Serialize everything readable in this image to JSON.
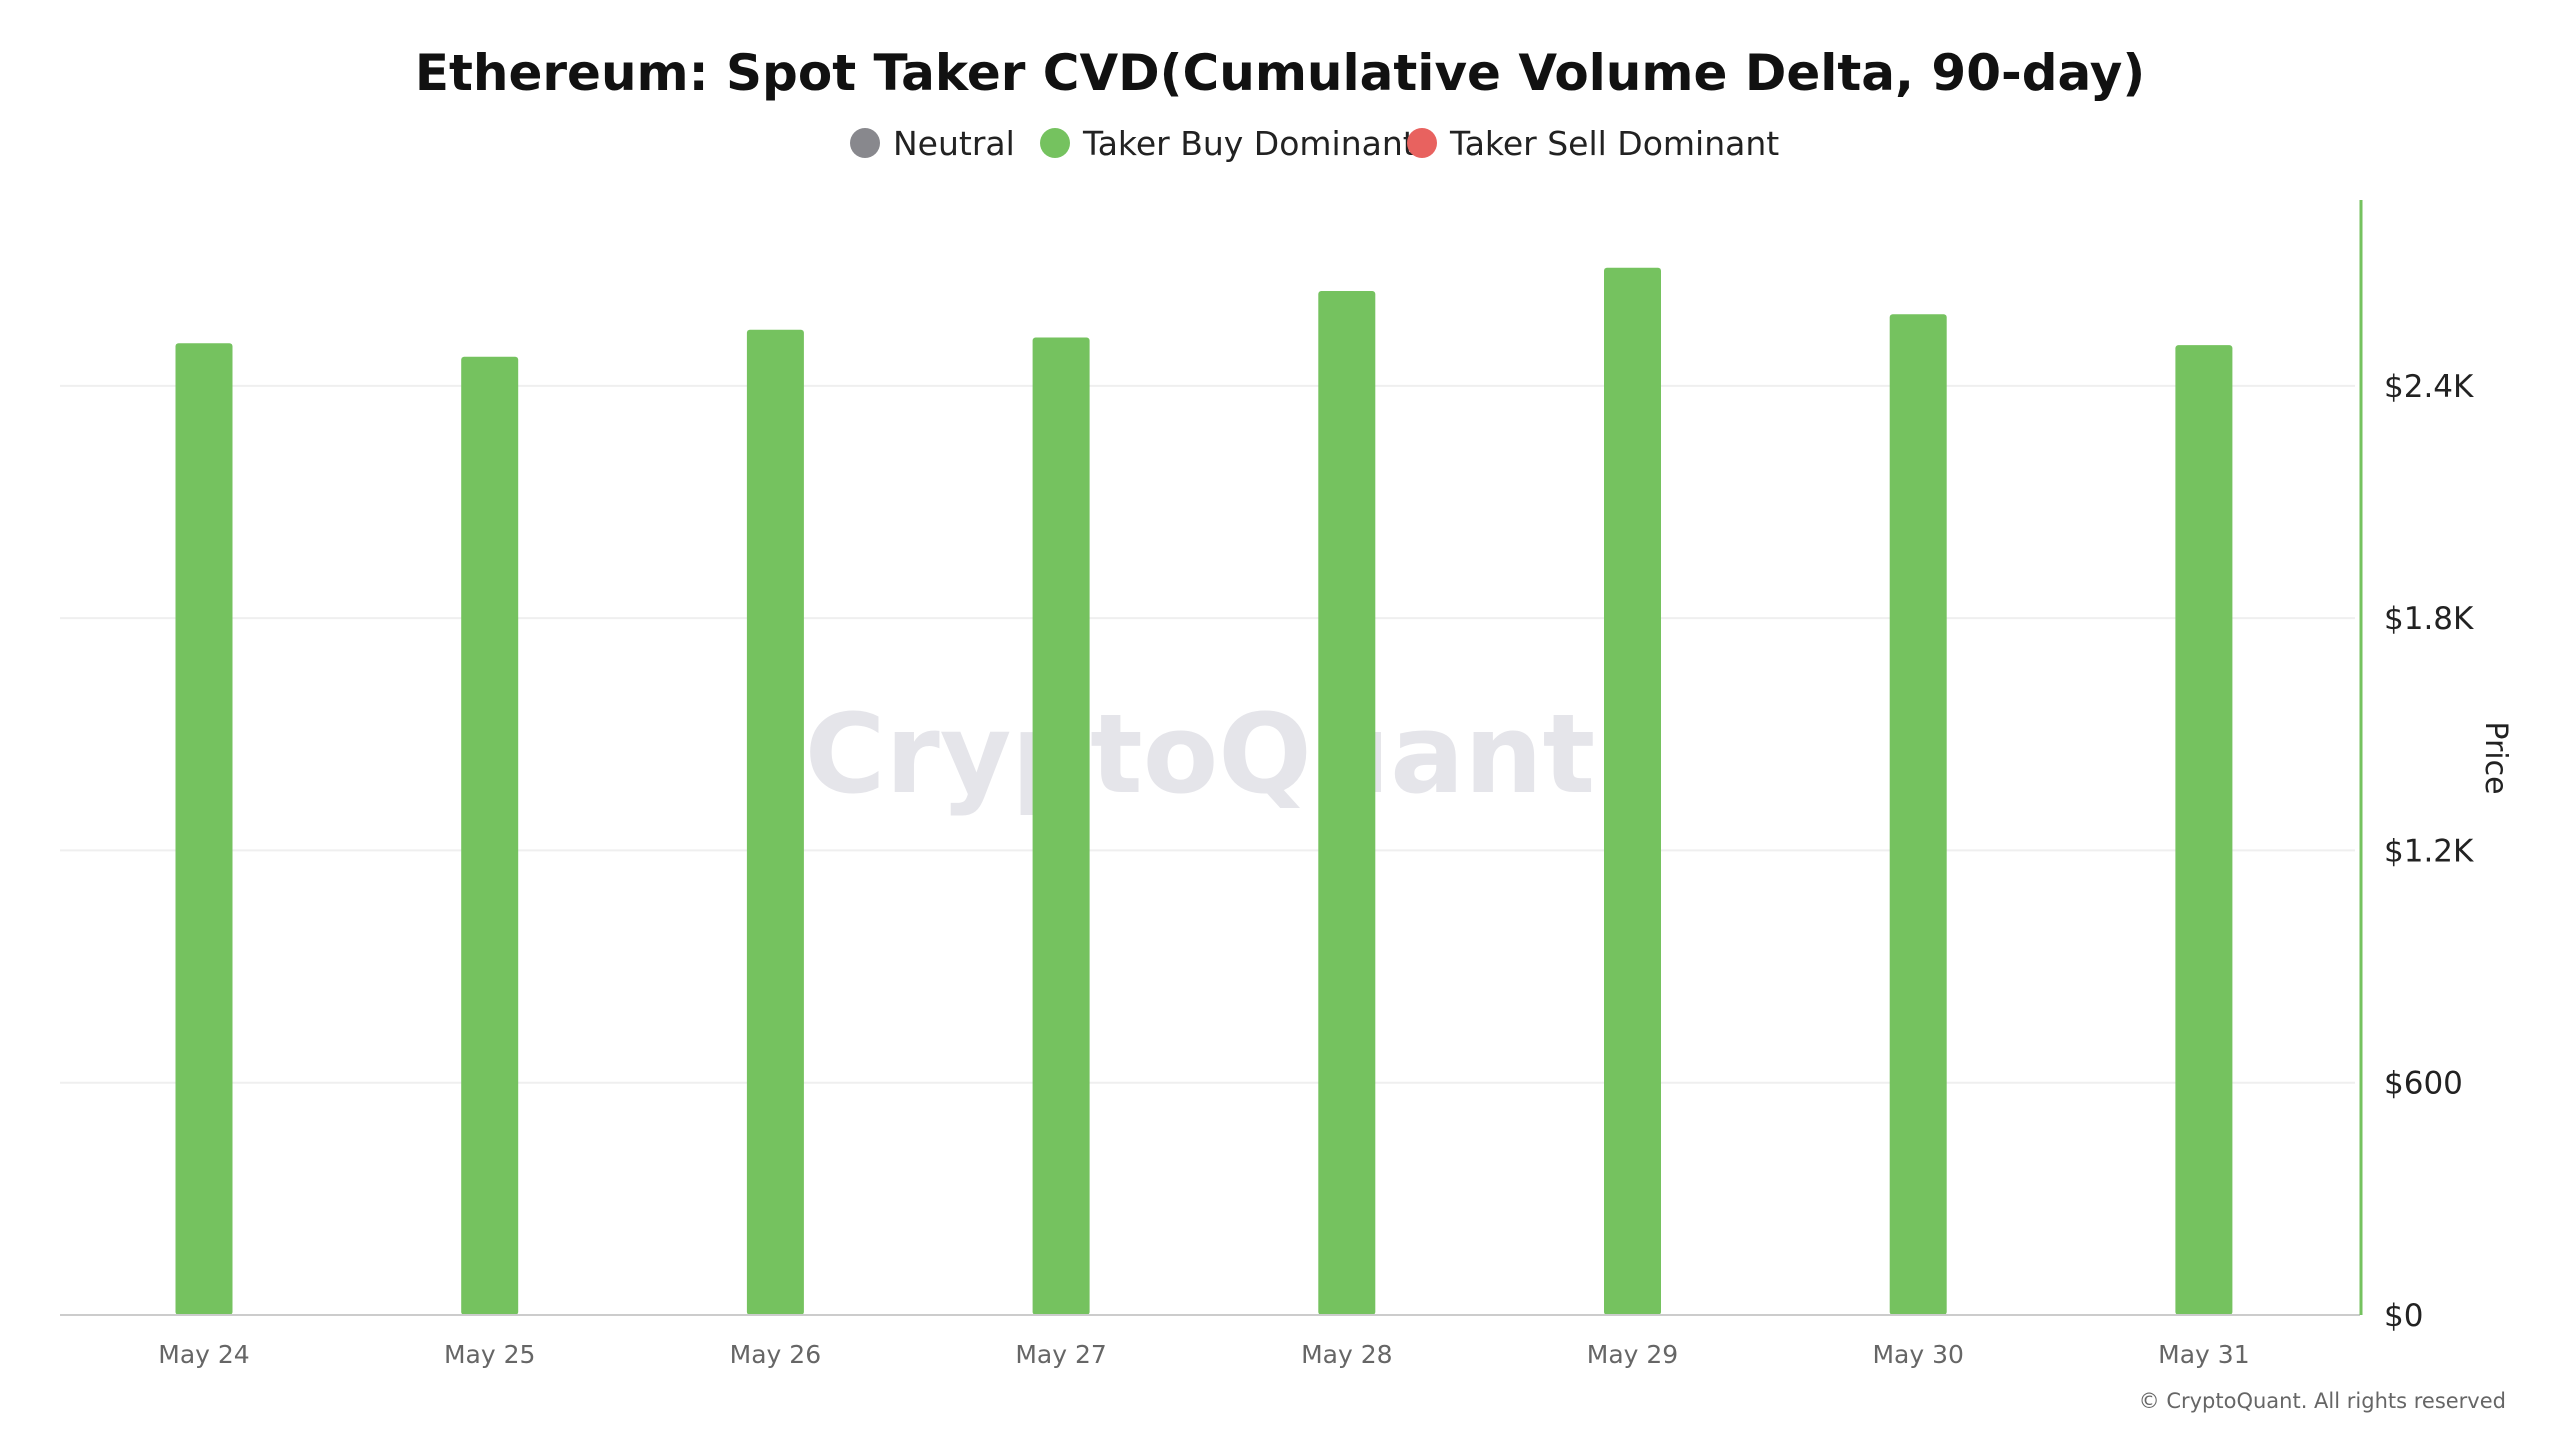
{
  "chart_data": {
    "type": "bar",
    "title": "Ethereum: Spot Taker CVD(Cumulative Volume Delta, 90-day)",
    "legend": [
      {
        "label": "Neutral",
        "color": "#88888d"
      },
      {
        "label": "Taker Buy Dominant",
        "color": "#75c25f"
      },
      {
        "label": "Taker Sell Dominant",
        "color": "#e8625f"
      }
    ],
    "categories": [
      "May 24",
      "May 25",
      "May 26",
      "May 27",
      "May 28",
      "May 29",
      "May 30",
      "May 31"
    ],
    "series": [
      {
        "name": "Taker Buy Dominant",
        "color": "#75c25f",
        "values": [
          2510,
          2475,
          2545,
          2525,
          2645,
          2705,
          2585,
          2505
        ]
      }
    ],
    "ylabel": "Price",
    "ylim": [
      0,
      2880
    ],
    "y_ticks": [
      0,
      600,
      1200,
      1800,
      2400
    ],
    "y_tick_labels": [
      "$0",
      "$600",
      "$1.2K",
      "$1.8K",
      "$2.4K"
    ],
    "y_axis_position": "right",
    "grid": true,
    "legend_position": "top-center"
  },
  "watermark": "CryptoQuant",
  "copyright": "© CryptoQuant. All rights reserved"
}
